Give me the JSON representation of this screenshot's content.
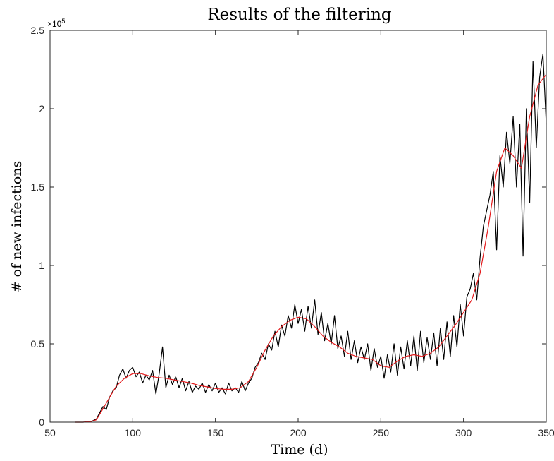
{
  "chart_data": {
    "type": "line",
    "title": "Results of the filtering",
    "xlabel": "Time (d)",
    "ylabel": "# of new infections",
    "exponent_label": "×10^5",
    "xlim": [
      50,
      350
    ],
    "ylim": [
      0,
      250000
    ],
    "x_ticks": [
      50,
      100,
      150,
      200,
      250,
      300,
      350
    ],
    "x_tick_labels": [
      "50",
      "100",
      "150",
      "200",
      "250",
      "300",
      "350"
    ],
    "y_ticks": [
      0,
      50000,
      100000,
      150000,
      200000,
      250000
    ],
    "y_tick_labels": [
      "0",
      "0.5",
      "1",
      "1.5",
      "2",
      "2.5"
    ],
    "grid": false,
    "legend": "none",
    "series": [
      {
        "color": "#000000",
        "x": [
          65,
          70,
          75,
          78,
          80,
          82,
          84,
          86,
          88,
          90,
          92,
          94,
          96,
          98,
          100,
          102,
          104,
          106,
          108,
          110,
          112,
          114,
          116,
          118,
          120,
          122,
          124,
          126,
          128,
          130,
          132,
          134,
          136,
          138,
          140,
          142,
          144,
          146,
          148,
          150,
          152,
          154,
          156,
          158,
          160,
          162,
          164,
          166,
          168,
          170,
          172,
          174,
          176,
          178,
          180,
          182,
          184,
          186,
          188,
          190,
          192,
          194,
          196,
          198,
          200,
          202,
          204,
          206,
          208,
          210,
          212,
          214,
          216,
          218,
          220,
          222,
          224,
          226,
          228,
          230,
          232,
          234,
          236,
          238,
          240,
          242,
          244,
          246,
          248,
          250,
          252,
          254,
          256,
          258,
          260,
          262,
          264,
          266,
          268,
          270,
          272,
          274,
          276,
          278,
          280,
          282,
          284,
          286,
          288,
          290,
          292,
          294,
          296,
          298,
          300,
          302,
          304,
          306,
          308,
          310,
          312,
          314,
          316,
          318,
          320,
          322,
          324,
          326,
          328,
          330,
          332,
          334,
          336,
          338,
          340,
          342,
          344,
          346,
          348,
          350
        ],
        "y": [
          0,
          0,
          500,
          2000,
          6000,
          10000,
          8000,
          16000,
          20000,
          22000,
          30000,
          34000,
          28000,
          33000,
          35000,
          29000,
          32000,
          25000,
          30000,
          27000,
          33000,
          18000,
          31000,
          48000,
          22000,
          30000,
          24000,
          29000,
          22000,
          28000,
          20000,
          26000,
          19000,
          23000,
          21000,
          25000,
          19000,
          24000,
          20000,
          25000,
          19000,
          22000,
          18000,
          25000,
          20000,
          22000,
          19000,
          26000,
          20000,
          25000,
          28000,
          35000,
          38000,
          44000,
          40000,
          50000,
          46000,
          58000,
          48000,
          62000,
          55000,
          68000,
          60000,
          75000,
          63000,
          72000,
          58000,
          74000,
          60000,
          78000,
          56000,
          70000,
          52000,
          63000,
          50000,
          68000,
          47000,
          55000,
          42000,
          58000,
          40000,
          52000,
          38000,
          48000,
          40000,
          50000,
          33000,
          47000,
          35000,
          42000,
          28000,
          43000,
          32000,
          50000,
          30000,
          48000,
          34000,
          52000,
          36000,
          55000,
          33000,
          58000,
          38000,
          54000,
          40000,
          57000,
          36000,
          60000,
          40000,
          64000,
          42000,
          68000,
          48000,
          75000,
          55000,
          80000,
          85000,
          95000,
          78000,
          105000,
          125000,
          135000,
          145000,
          160000,
          110000,
          170000,
          150000,
          185000,
          165000,
          195000,
          150000,
          190000,
          106000,
          200000,
          140000,
          230000,
          175000,
          220000,
          235000,
          190000
        ]
      },
      {
        "color": "#e41a1c",
        "x": [
          65,
          70,
          75,
          78,
          80,
          85,
          90,
          95,
          100,
          105,
          110,
          115,
          120,
          125,
          130,
          135,
          140,
          145,
          150,
          155,
          160,
          165,
          170,
          175,
          180,
          185,
          190,
          195,
          200,
          205,
          210,
          215,
          220,
          225,
          230,
          235,
          240,
          245,
          250,
          255,
          260,
          265,
          270,
          275,
          280,
          285,
          290,
          295,
          300,
          305,
          310,
          315,
          320,
          325,
          330,
          335,
          340,
          345,
          350
        ],
        "y": [
          0,
          0,
          500,
          1500,
          5000,
          14000,
          23000,
          28000,
          31000,
          31000,
          29500,
          28500,
          28000,
          27000,
          26000,
          25000,
          23500,
          22500,
          21500,
          21000,
          21000,
          22000,
          26000,
          35000,
          46000,
          55000,
          61000,
          65000,
          67000,
          66000,
          61000,
          55000,
          51000,
          48000,
          44000,
          42000,
          41000,
          40000,
          36000,
          35000,
          39000,
          42000,
          43000,
          42000,
          44000,
          48000,
          55000,
          62000,
          70000,
          78000,
          95000,
          125000,
          160000,
          175000,
          170000,
          162000,
          195000,
          215000,
          222000
        ]
      }
    ]
  }
}
